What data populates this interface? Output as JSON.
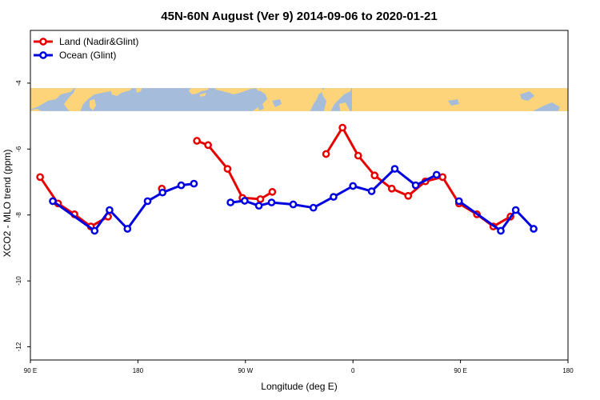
{
  "chart_data": {
    "type": "line",
    "title": "45N-60N August (Ver 9)   2014-09-06 to 2020-01-21",
    "xlabel": "Longitude (deg E)",
    "ylabel": "XCO2 - MLO trend (ppm)",
    "xlim": [
      90,
      450
    ],
    "ylim": [
      -12.4,
      -2.4
    ],
    "x_ticks": [
      90,
      162,
      234,
      306,
      378,
      450
    ],
    "x_tick_labels": [
      "90 E",
      "180",
      "90 W",
      "0",
      "90 E",
      "180"
    ],
    "y_ticks": [
      -12,
      -10,
      -8,
      -6,
      -4
    ],
    "y_tick_labels": [
      "-12",
      "-10",
      "-8",
      "-6",
      "-4"
    ],
    "grid": false,
    "legend_position": "top-left",
    "map_strip": {
      "y_range": [
        -4.85,
        -4.15
      ],
      "ocean_color": "#a5bcda",
      "land_color": "#fdd47a"
    },
    "series": [
      {
        "name": "Land (Nadir&Glint)",
        "color": "#e60000",
        "segments": [
          [
            [
              96.5,
              -6.85
            ],
            [
              108.5,
              -7.65
            ],
            [
              119.5,
              -7.98
            ],
            [
              130.5,
              -8.35
            ],
            [
              142,
              -8.05
            ]
          ],
          [
            [
              178,
              -7.2
            ]
          ],
          [
            [
              201.5,
              -5.75
            ],
            [
              209,
              -5.88
            ],
            [
              222,
              -6.6
            ],
            [
              232,
              -7.48
            ],
            [
              244,
              -7.52
            ],
            [
              252,
              -7.3
            ]
          ],
          [
            [
              288,
              -6.15
            ],
            [
              299,
              -5.35
            ],
            [
              309.5,
              -6.2
            ],
            [
              320.5,
              -6.8
            ],
            [
              332,
              -7.2
            ],
            [
              343,
              -7.42
            ],
            [
              354.5,
              -6.98
            ],
            [
              366,
              -6.85
            ],
            [
              377,
              -7.65
            ],
            [
              389,
              -7.98
            ],
            [
              400,
              -8.35
            ],
            [
              411.5,
              -8.05
            ]
          ]
        ]
      },
      {
        "name": "Ocean (Glint)",
        "color": "#0000e0",
        "segments": [
          [
            [
              105,
              -7.58
            ],
            [
              133,
              -8.48
            ],
            [
              143,
              -7.85
            ],
            [
              155,
              -8.42
            ],
            [
              168.5,
              -7.58
            ],
            [
              178.5,
              -7.32
            ],
            [
              191,
              -7.1
            ],
            [
              199.5,
              -7.05
            ]
          ],
          [
            [
              224,
              -7.62
            ],
            [
              233.5,
              -7.57
            ],
            [
              243,
              -7.72
            ],
            [
              251.5,
              -7.62
            ],
            [
              266,
              -7.68
            ],
            [
              279.5,
              -7.78
            ],
            [
              293,
              -7.45
            ],
            [
              306,
              -7.12
            ],
            [
              318.5,
              -7.28
            ],
            [
              334,
              -6.6
            ],
            [
              348,
              -7.1
            ],
            [
              362,
              -6.78
            ]
          ],
          [
            [
              377,
              -7.58
            ],
            [
              405,
              -8.48
            ],
            [
              415,
              -7.85
            ],
            [
              427,
              -8.42
            ]
          ]
        ]
      }
    ]
  }
}
